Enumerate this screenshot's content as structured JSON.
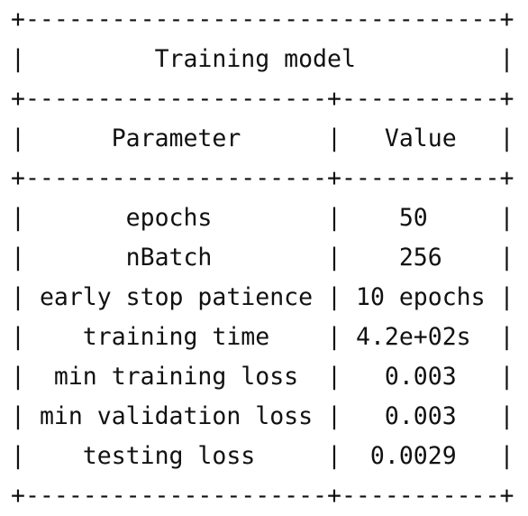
{
  "table": {
    "title": "Training model",
    "headers": {
      "parameter": "Parameter",
      "value": "Value"
    },
    "rows": [
      {
        "parameter": "epochs",
        "value": "50"
      },
      {
        "parameter": "nBatch",
        "value": "256"
      },
      {
        "parameter": "early stop patience",
        "value": "10 epochs"
      },
      {
        "parameter": "training time",
        "value": "4.2e+02s"
      },
      {
        "parameter": "min training loss",
        "value": "0.003"
      },
      {
        "parameter": "min validation loss",
        "value": "0.003"
      },
      {
        "parameter": "testing loss",
        "value": "0.0029"
      }
    ]
  }
}
